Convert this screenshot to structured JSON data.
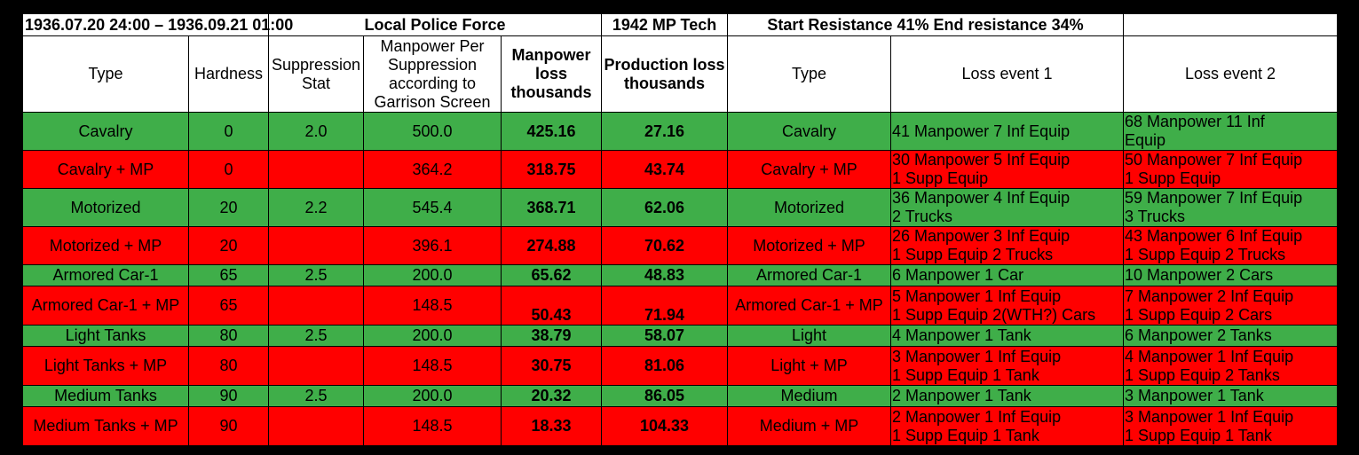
{
  "header": {
    "date_range": "1936.07.20 24:00 – 1936.09.21 01:00",
    "law": "Local Police Force",
    "tech": "1942 MP Tech",
    "resistance": "Start Resistance 41% End resistance 34%",
    "blank": ""
  },
  "columns": {
    "type": "Type",
    "hardness": "Hardness",
    "suppression": "Suppression Stat",
    "mp_per_supp": "Manpower Per Suppression according to Garrison Screen",
    "mp_loss": "Manpower loss thousands",
    "prod_loss": "Production loss thousands",
    "type2": "Type",
    "event1": "Loss event 1",
    "event2": "Loss event 2"
  },
  "rows": [
    {
      "type": "Cavalry",
      "hardness": "0",
      "suppression": "2.0",
      "mp_per_supp": "500.0",
      "mp_loss": "425.16",
      "prod_loss": "27.16",
      "type2": "Cavalry",
      "e1a": "41 Manpower 7 Inf Equip",
      "e1b": "",
      "e2a": "68 Manpower 11 Inf",
      "e2b": "Equip"
    },
    {
      "type": "Cavalry + MP",
      "hardness": "0",
      "suppression": "",
      "mp_per_supp": "364.2",
      "mp_loss": "318.75",
      "prod_loss": "43.74",
      "type2": "Cavalry + MP",
      "e1a": "30 Manpower 5 Inf Equip",
      "e1b": "1 Supp Equip",
      "e2a": "50 Manpower 7 Inf Equip",
      "e2b": " 1 Supp Equip"
    },
    {
      "type": "Motorized",
      "hardness": "20",
      "suppression": "2.2",
      "mp_per_supp": "545.4",
      "mp_loss": "368.71",
      "prod_loss": "62.06",
      "type2": "Motorized",
      "e1a": "36 Manpower 4 Inf Equip",
      "e1b": "2 Trucks",
      "e2a": "59 Manpower 7 Inf Equip",
      "e2b": " 3 Trucks"
    },
    {
      "type": "Motorized + MP",
      "hardness": "20",
      "suppression": "",
      "mp_per_supp": "396.1",
      "mp_loss": "274.88",
      "prod_loss": "70.62",
      "type2": "Motorized + MP",
      "e1a": "26 Manpower 3 Inf Equip",
      "e1b": "1 Supp Equip 2 Trucks",
      "e2a": "43 Manpower 6 Inf Equip",
      "e2b": " 1 Supp Equip 2 Trucks"
    },
    {
      "type": "Armored Car-1",
      "hardness": "65",
      "suppression": "2.5",
      "mp_per_supp": "200.0",
      "mp_loss": "65.62",
      "prod_loss": "48.83",
      "type2": "Armored Car-1",
      "e1a": "6 Manpower 1 Car",
      "e1b": "",
      "e2a": "10 Manpower 2 Cars",
      "e2b": ""
    },
    {
      "type": "Armored Car-1 + MP",
      "hardness": "65",
      "suppression": "",
      "mp_per_supp": "148.5",
      "mp_loss": "50.43",
      "prod_loss": "71.94",
      "type2": "Armored Car-1 + MP",
      "e1a": "5 Manpower 1 Inf Equip",
      "e1b": "1 Supp Equip 2(WTH?) Cars",
      "e2a": "7 Manpower 2 Inf Equip",
      "e2b": "1 Supp Equip 2 Cars"
    },
    {
      "type": "Light Tanks",
      "hardness": "80",
      "suppression": "2.5",
      "mp_per_supp": "200.0",
      "mp_loss": "38.79",
      "prod_loss": "58.07",
      "type2": "Light",
      "e1a": "4 Manpower 1 Tank",
      "e1b": "",
      "e2a": "6 Manpower 2 Tanks",
      "e2b": ""
    },
    {
      "type": "Light Tanks + MP",
      "hardness": "80",
      "suppression": "",
      "mp_per_supp": "148.5",
      "mp_loss": "30.75",
      "prod_loss": "81.06",
      "type2": "Light + MP",
      "e1a": "3 Manpower 1 Inf Equip",
      "e1b": "1 Supp Equip 1 Tank",
      "e2a": "4 Manpower 1 Inf Equip",
      "e2b": "1 Supp Equip 2 Tanks"
    },
    {
      "type": "Medium Tanks",
      "hardness": "90",
      "suppression": "2.5",
      "mp_per_supp": "200.0",
      "mp_loss": "20.32",
      "prod_loss": "86.05",
      "type2": "Medium",
      "e1a": "2 Manpower 1 Tank",
      "e1b": "",
      "e2a": "3 Manpower 1 Tank",
      "e2b": ""
    },
    {
      "type": "Medium Tanks + MP",
      "hardness": "90",
      "suppression": "",
      "mp_per_supp": "148.5",
      "mp_loss": "18.33",
      "prod_loss": "104.33",
      "type2": "Medium + MP",
      "e1a": "2 Manpower 1 Inf Equip",
      "e1b": "1 Supp Equip 1 Tank",
      "e2a": "3 Manpower 1 Inf Equip",
      "e2b": " 1 Supp Equip 1 Tank"
    }
  ],
  "colors": {
    "green": "#3fae49",
    "red": "#ff0000",
    "frame": "#000000"
  }
}
